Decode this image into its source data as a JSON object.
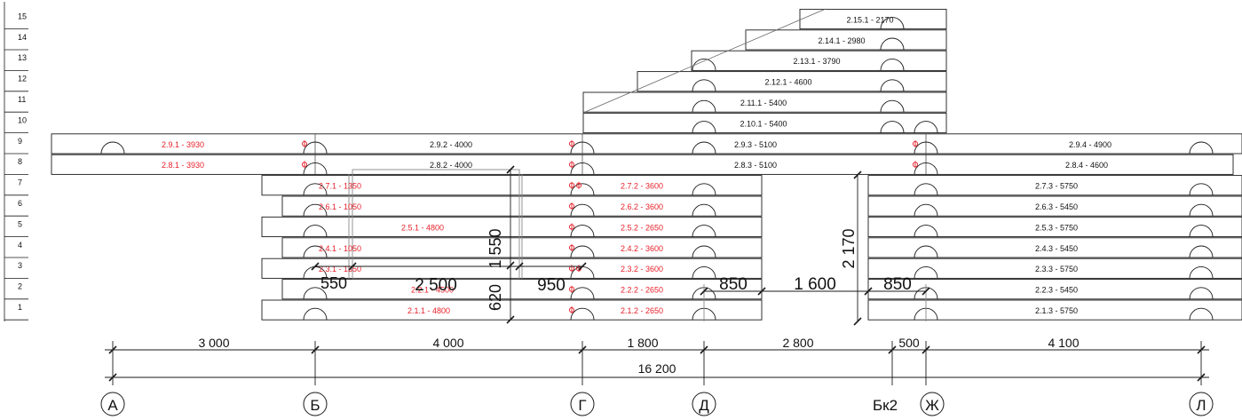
{
  "colors": {
    "line": "#1a1a1a",
    "red": "#e8202a",
    "ink": "#111111",
    "grey": "#8a8a8a"
  },
  "row_numbers": [
    "1",
    "2",
    "3",
    "4",
    "5",
    "6",
    "7",
    "8",
    "9",
    "10",
    "11",
    "12",
    "13",
    "14",
    "15"
  ],
  "panels": [
    {
      "id": "p-1-1",
      "label": "2.1.1 - 4800",
      "red": true
    },
    {
      "id": "p-1-2",
      "label": "2.1.2 - 2650",
      "red": true
    },
    {
      "id": "p-1-3",
      "label": "2.1.3 - 5750",
      "red": false
    },
    {
      "id": "p-2-1",
      "label": "2.2.1 - 4500",
      "red": true
    },
    {
      "id": "p-2-2",
      "label": "2.2.2 - 2650",
      "red": true
    },
    {
      "id": "p-2-3",
      "label": "2.2.3 - 5450",
      "red": false
    },
    {
      "id": "p-3-1",
      "label": "2.3.1 - 1350",
      "red": true
    },
    {
      "id": "p-3-2",
      "label": "2.3.2 - 3600",
      "red": true
    },
    {
      "id": "p-3-3",
      "label": "2.3.3 - 5750",
      "red": false
    },
    {
      "id": "p-4-1",
      "label": "2.4.1 - 1050",
      "red": true
    },
    {
      "id": "p-4-2",
      "label": "2.4.2 - 3600",
      "red": true
    },
    {
      "id": "p-4-3",
      "label": "2.4.3 - 5450",
      "red": false
    },
    {
      "id": "p-5-1",
      "label": "2.5.1 - 4800",
      "red": true
    },
    {
      "id": "p-5-2",
      "label": "2.5.2 - 2650",
      "red": true
    },
    {
      "id": "p-5-3",
      "label": "2.5.3 - 5750",
      "red": false
    },
    {
      "id": "p-6-1",
      "label": "2.6.1 - 1050",
      "red": true
    },
    {
      "id": "p-6-2",
      "label": "2.6.2 - 3600",
      "red": true
    },
    {
      "id": "p-6-3",
      "label": "2.6.3 - 5450",
      "red": false
    },
    {
      "id": "p-7-1",
      "label": "2.7.1 - 1350",
      "red": true
    },
    {
      "id": "p-7-2",
      "label": "2.7.2 - 3600",
      "red": true
    },
    {
      "id": "p-7-3",
      "label": "2.7.3 - 5750",
      "red": false
    },
    {
      "id": "p-8-1",
      "label": "2.8.1 - 3930",
      "red": true
    },
    {
      "id": "p-8-2",
      "label": "2.8.2 - 4000",
      "red": false
    },
    {
      "id": "p-8-3",
      "label": "2.8.3 - 5100",
      "red": false
    },
    {
      "id": "p-8-4",
      "label": "2.8.4 - 4600",
      "red": false
    },
    {
      "id": "p-9-1",
      "label": "2.9.1 - 3930",
      "red": true
    },
    {
      "id": "p-9-2",
      "label": "2.9.2 - 4000",
      "red": false
    },
    {
      "id": "p-9-3",
      "label": "2.9.3 - 5100",
      "red": false
    },
    {
      "id": "p-9-4",
      "label": "2.9.4 - 4900",
      "red": false
    },
    {
      "id": "p-10-1",
      "label": "2.10.1 - 5400",
      "red": false
    },
    {
      "id": "p-11-1",
      "label": "2.11.1 - 5400",
      "red": false
    },
    {
      "id": "p-12-1",
      "label": "2.12.1 - 4600",
      "red": false
    },
    {
      "id": "p-13-1",
      "label": "2.13.1 - 3790",
      "red": false
    },
    {
      "id": "p-14-1",
      "label": "2.14.1 - 2980",
      "red": false
    },
    {
      "id": "p-15-1",
      "label": "2.15.1 - 2170",
      "red": false
    }
  ],
  "inner_dimensions": {
    "d_550": "550",
    "d_2500": "2 500",
    "d_950": "950",
    "d_1550": "1 550",
    "d_620": "620",
    "d_850_left": "850",
    "d_1600": "1 600",
    "d_850_right": "850",
    "d_2170": "2 170"
  },
  "bottom_dimensions": {
    "spans": [
      "3 000",
      "4 000",
      "1 800",
      "2 800",
      "500",
      "4 100"
    ],
    "total": "16 200"
  },
  "axes": [
    "А",
    "Б",
    "Г",
    "Д",
    "Бк2",
    "Ж",
    "Л"
  ]
}
